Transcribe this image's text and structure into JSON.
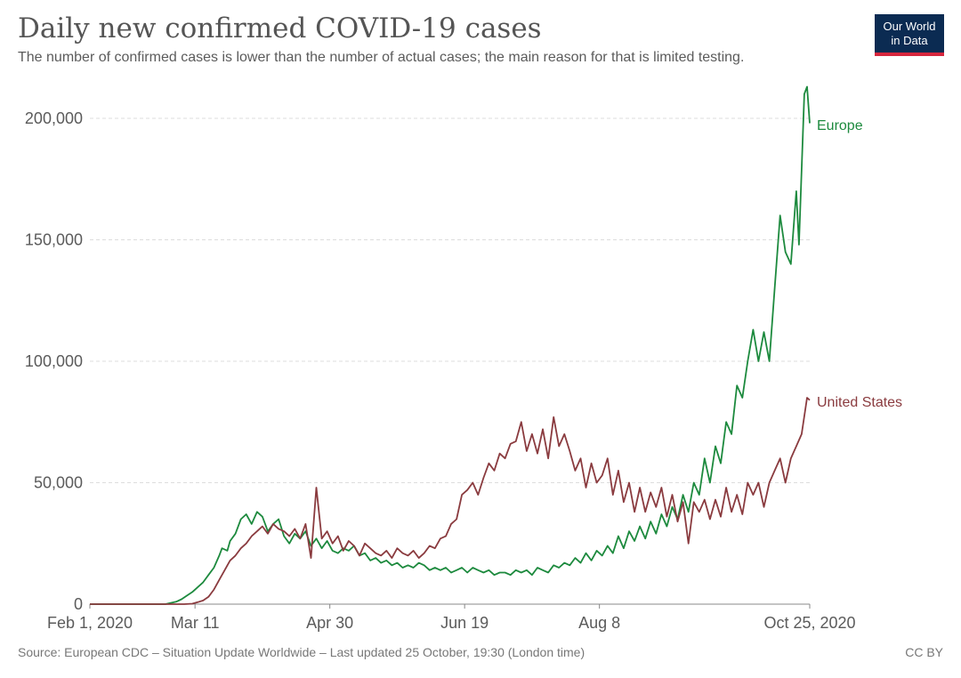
{
  "header": {
    "title": "Daily new confirmed COVID-19 cases",
    "subtitle": "The number of confirmed cases is lower than the number of actual cases; the main reason for that is limited testing.",
    "logo_line1": "Our World",
    "logo_line2": "in Data"
  },
  "footer": {
    "source": "Source: European CDC – Situation Update Worldwide – Last updated 25 October, 19:30 (London time)",
    "license": "CC BY"
  },
  "colors": {
    "europe": "#1d8a3e",
    "united_states": "#8a3b3f",
    "grid": "#dddddd",
    "axis": "#888888"
  },
  "chart_data": {
    "type": "line",
    "title": "Daily new confirmed COVID-19 cases",
    "subtitle": "The number of confirmed cases is lower than the number of actual cases; the main reason for that is limited testing.",
    "xlabel": "",
    "ylabel": "",
    "x_ticks": [
      {
        "label": "Feb 1, 2020",
        "day": 0
      },
      {
        "label": "Mar 11",
        "day": 39
      },
      {
        "label": "Apr 30",
        "day": 89
      },
      {
        "label": "Jun 19",
        "day": 139
      },
      {
        "label": "Aug 8",
        "day": 189
      },
      {
        "label": "Oct 25, 2020",
        "day": 267
      }
    ],
    "y_ticks": [
      "0",
      "50,000",
      "100,000",
      "150,000",
      "200,000"
    ],
    "ylim": [
      0,
      200000
    ],
    "grid": true,
    "legend": "inline labels at line ends",
    "series": [
      {
        "name": "Europe",
        "points": [
          [
            0,
            0
          ],
          [
            28,
            0
          ],
          [
            30,
            500
          ],
          [
            32,
            1000
          ],
          [
            34,
            2000
          ],
          [
            36,
            3500
          ],
          [
            38,
            5000
          ],
          [
            40,
            7000
          ],
          [
            42,
            9000
          ],
          [
            44,
            12000
          ],
          [
            46,
            15000
          ],
          [
            48,
            20000
          ],
          [
            49,
            23000
          ],
          [
            51,
            22000
          ],
          [
            52,
            26000
          ],
          [
            54,
            29000
          ],
          [
            56,
            35000
          ],
          [
            58,
            37000
          ],
          [
            60,
            33000
          ],
          [
            62,
            38000
          ],
          [
            64,
            36000
          ],
          [
            66,
            30000
          ],
          [
            68,
            33000
          ],
          [
            70,
            35000
          ],
          [
            72,
            28000
          ],
          [
            74,
            25000
          ],
          [
            76,
            29000
          ],
          [
            78,
            27000
          ],
          [
            80,
            30000
          ],
          [
            82,
            24000
          ],
          [
            84,
            27000
          ],
          [
            86,
            23000
          ],
          [
            88,
            26000
          ],
          [
            90,
            22000
          ],
          [
            92,
            21000
          ],
          [
            94,
            23000
          ],
          [
            96,
            22000
          ],
          [
            98,
            24000
          ],
          [
            100,
            20000
          ],
          [
            102,
            21000
          ],
          [
            104,
            18000
          ],
          [
            106,
            19000
          ],
          [
            108,
            17000
          ],
          [
            110,
            18000
          ],
          [
            112,
            16000
          ],
          [
            114,
            17000
          ],
          [
            116,
            15000
          ],
          [
            118,
            16000
          ],
          [
            120,
            15000
          ],
          [
            122,
            17000
          ],
          [
            124,
            16000
          ],
          [
            126,
            14000
          ],
          [
            128,
            15000
          ],
          [
            130,
            14000
          ],
          [
            132,
            15000
          ],
          [
            134,
            13000
          ],
          [
            136,
            14000
          ],
          [
            138,
            15000
          ],
          [
            140,
            13000
          ],
          [
            142,
            15000
          ],
          [
            144,
            14000
          ],
          [
            146,
            13000
          ],
          [
            148,
            14000
          ],
          [
            150,
            12000
          ],
          [
            152,
            13000
          ],
          [
            154,
            13000
          ],
          [
            156,
            12000
          ],
          [
            158,
            14000
          ],
          [
            160,
            13000
          ],
          [
            162,
            14000
          ],
          [
            164,
            12000
          ],
          [
            166,
            15000
          ],
          [
            168,
            14000
          ],
          [
            170,
            13000
          ],
          [
            172,
            16000
          ],
          [
            174,
            15000
          ],
          [
            176,
            17000
          ],
          [
            178,
            16000
          ],
          [
            180,
            19000
          ],
          [
            182,
            17000
          ],
          [
            184,
            21000
          ],
          [
            186,
            18000
          ],
          [
            188,
            22000
          ],
          [
            190,
            20000
          ],
          [
            192,
            24000
          ],
          [
            194,
            21000
          ],
          [
            196,
            28000
          ],
          [
            198,
            23000
          ],
          [
            200,
            30000
          ],
          [
            202,
            26000
          ],
          [
            204,
            32000
          ],
          [
            206,
            27000
          ],
          [
            208,
            34000
          ],
          [
            210,
            29000
          ],
          [
            212,
            37000
          ],
          [
            214,
            32000
          ],
          [
            216,
            40000
          ],
          [
            218,
            35000
          ],
          [
            220,
            45000
          ],
          [
            222,
            38000
          ],
          [
            224,
            50000
          ],
          [
            226,
            45000
          ],
          [
            228,
            60000
          ],
          [
            230,
            50000
          ],
          [
            232,
            65000
          ],
          [
            234,
            58000
          ],
          [
            236,
            75000
          ],
          [
            238,
            70000
          ],
          [
            240,
            90000
          ],
          [
            242,
            85000
          ],
          [
            244,
            100000
          ],
          [
            246,
            113000
          ],
          [
            248,
            100000
          ],
          [
            250,
            112000
          ],
          [
            252,
            100000
          ],
          [
            254,
            130000
          ],
          [
            256,
            160000
          ],
          [
            258,
            145000
          ],
          [
            260,
            140000
          ],
          [
            262,
            170000
          ],
          [
            263,
            148000
          ],
          [
            265,
            210000
          ],
          [
            266,
            213000
          ],
          [
            267,
            198000
          ]
        ]
      },
      {
        "name": "United States",
        "points": [
          [
            0,
            0
          ],
          [
            35,
            0
          ],
          [
            38,
            200
          ],
          [
            40,
            800
          ],
          [
            42,
            1500
          ],
          [
            44,
            3000
          ],
          [
            46,
            6000
          ],
          [
            48,
            10000
          ],
          [
            50,
            14000
          ],
          [
            52,
            18000
          ],
          [
            54,
            20000
          ],
          [
            56,
            23000
          ],
          [
            58,
            25000
          ],
          [
            60,
            28000
          ],
          [
            62,
            30000
          ],
          [
            64,
            32000
          ],
          [
            66,
            29000
          ],
          [
            68,
            33000
          ],
          [
            70,
            31000
          ],
          [
            72,
            30000
          ],
          [
            74,
            28000
          ],
          [
            76,
            31000
          ],
          [
            78,
            27000
          ],
          [
            80,
            33000
          ],
          [
            82,
            19000
          ],
          [
            84,
            48000
          ],
          [
            86,
            27000
          ],
          [
            88,
            30000
          ],
          [
            90,
            25000
          ],
          [
            92,
            28000
          ],
          [
            94,
            22000
          ],
          [
            96,
            26000
          ],
          [
            98,
            24000
          ],
          [
            100,
            20000
          ],
          [
            102,
            25000
          ],
          [
            104,
            23000
          ],
          [
            106,
            21000
          ],
          [
            108,
            20000
          ],
          [
            110,
            22000
          ],
          [
            112,
            19000
          ],
          [
            114,
            23000
          ],
          [
            116,
            21000
          ],
          [
            118,
            20000
          ],
          [
            120,
            22000
          ],
          [
            122,
            19000
          ],
          [
            124,
            21000
          ],
          [
            126,
            24000
          ],
          [
            128,
            23000
          ],
          [
            130,
            27000
          ],
          [
            132,
            28000
          ],
          [
            134,
            33000
          ],
          [
            136,
            35000
          ],
          [
            138,
            45000
          ],
          [
            140,
            47000
          ],
          [
            142,
            50000
          ],
          [
            144,
            45000
          ],
          [
            146,
            52000
          ],
          [
            148,
            58000
          ],
          [
            150,
            55000
          ],
          [
            152,
            62000
          ],
          [
            154,
            60000
          ],
          [
            156,
            66000
          ],
          [
            158,
            67000
          ],
          [
            160,
            75000
          ],
          [
            162,
            63000
          ],
          [
            164,
            70000
          ],
          [
            166,
            62000
          ],
          [
            168,
            72000
          ],
          [
            170,
            60000
          ],
          [
            172,
            77000
          ],
          [
            174,
            65000
          ],
          [
            176,
            70000
          ],
          [
            178,
            63000
          ],
          [
            180,
            55000
          ],
          [
            182,
            60000
          ],
          [
            184,
            48000
          ],
          [
            186,
            58000
          ],
          [
            188,
            50000
          ],
          [
            190,
            53000
          ],
          [
            192,
            60000
          ],
          [
            194,
            45000
          ],
          [
            196,
            55000
          ],
          [
            198,
            42000
          ],
          [
            200,
            50000
          ],
          [
            202,
            38000
          ],
          [
            204,
            48000
          ],
          [
            206,
            38000
          ],
          [
            208,
            46000
          ],
          [
            210,
            40000
          ],
          [
            212,
            48000
          ],
          [
            214,
            36000
          ],
          [
            216,
            45000
          ],
          [
            218,
            34000
          ],
          [
            220,
            42000
          ],
          [
            222,
            25000
          ],
          [
            224,
            42000
          ],
          [
            226,
            38000
          ],
          [
            228,
            43000
          ],
          [
            230,
            35000
          ],
          [
            232,
            43000
          ],
          [
            234,
            36000
          ],
          [
            236,
            48000
          ],
          [
            238,
            38000
          ],
          [
            240,
            45000
          ],
          [
            242,
            37000
          ],
          [
            244,
            50000
          ],
          [
            246,
            45000
          ],
          [
            248,
            50000
          ],
          [
            250,
            40000
          ],
          [
            252,
            50000
          ],
          [
            254,
            55000
          ],
          [
            256,
            60000
          ],
          [
            258,
            50000
          ],
          [
            260,
            60000
          ],
          [
            262,
            65000
          ],
          [
            264,
            70000
          ],
          [
            266,
            85000
          ],
          [
            267,
            84000
          ]
        ]
      }
    ]
  }
}
